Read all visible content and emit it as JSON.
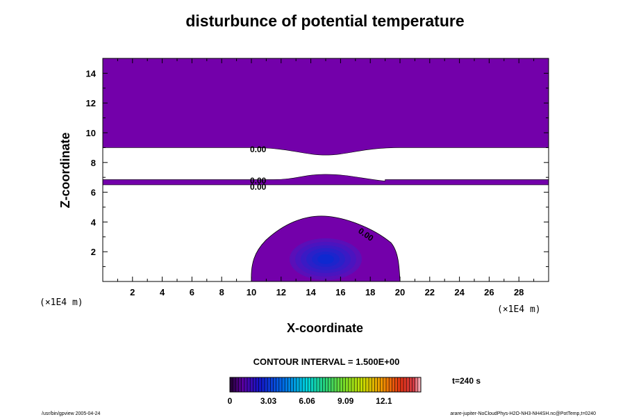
{
  "chart_data": {
    "type": "heatmap",
    "title": "disturbunce of potential temperature",
    "xlabel": "X-coordinate",
    "ylabel": "Z-coordinate",
    "x_unit": "(×1E4 m)",
    "y_unit": "(×1E4 m)",
    "xlim": [
      0,
      30
    ],
    "ylim": [
      0,
      15
    ],
    "x_ticks": [
      "2",
      "4",
      "6",
      "8",
      "10",
      "12",
      "14",
      "16",
      "18",
      "20",
      "22",
      "24",
      "26",
      "28"
    ],
    "y_ticks": [
      "2",
      "4",
      "6",
      "8",
      "10",
      "12",
      "14"
    ],
    "contour_labels": [
      "0.00",
      "0.00",
      "0.00",
      "0.00"
    ],
    "contour_interval": "CONTOUR INTERVAL = 1.500E+00",
    "colorbar": {
      "ticks": [
        "0",
        "3.03",
        "6.06",
        "9.09",
        "12.1"
      ],
      "tick_values": [
        0,
        3.03,
        6.06,
        9.09,
        12.1
      ],
      "range": [
        0,
        15
      ]
    },
    "time_label": "t=240 s",
    "fill_color": "#7300aa",
    "regions": [
      {
        "name": "upper-layer",
        "z_bottom_edge": 9.0,
        "z_top": 15,
        "dip_center_x": 15,
        "dip_min_z": 8.5
      },
      {
        "name": "middle-band",
        "z_bottom": 6.5,
        "z_top": 6.85,
        "bump_center_x": 15,
        "bump_max_z": 7.2
      },
      {
        "name": "thermal-bubble",
        "x_left": 10,
        "x_right": 20,
        "z_top": 4.4,
        "core_x": 15,
        "core_z": 1.5
      }
    ]
  },
  "footer": {
    "left": "/usr/bin/gpview 2005-04-24",
    "right": "arare-jupiter-NoCloudPhys-H2O-NH3-NH4SH.nc@PotTemp,t=0240"
  }
}
